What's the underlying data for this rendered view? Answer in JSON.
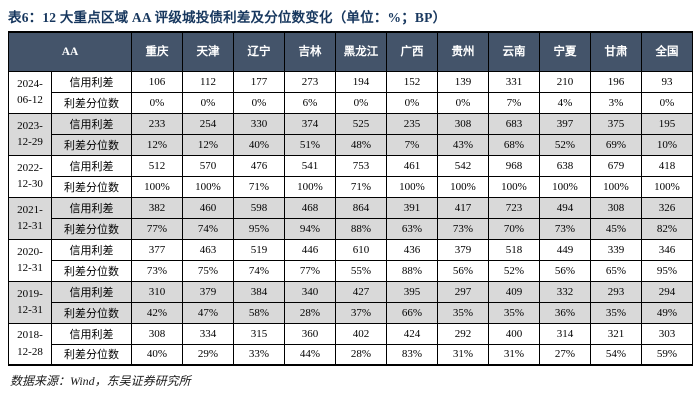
{
  "title": "表6：12 大重点区域 AA 评级城投债利差及分位数变化（单位：%；BP）",
  "table": {
    "corner_label": "AA",
    "columns": [
      "重庆",
      "天津",
      "辽宁",
      "吉林",
      "黑龙江",
      "广西",
      "贵州",
      "云南",
      "宁夏",
      "甘肃",
      "全国"
    ],
    "metric_labels": [
      "信用利差",
      "利差分位数"
    ],
    "rows": [
      {
        "date": [
          "2024-",
          "06-12"
        ],
        "spread": [
          "106",
          "112",
          "177",
          "273",
          "194",
          "152",
          "139",
          "331",
          "210",
          "196",
          "93"
        ],
        "percentile": [
          "0%",
          "0%",
          "0%",
          "6%",
          "0%",
          "0%",
          "0%",
          "7%",
          "4%",
          "3%",
          "0%"
        ]
      },
      {
        "date": [
          "2023-",
          "12-29"
        ],
        "spread": [
          "233",
          "254",
          "330",
          "374",
          "525",
          "235",
          "308",
          "683",
          "397",
          "375",
          "195"
        ],
        "percentile": [
          "12%",
          "12%",
          "40%",
          "51%",
          "48%",
          "7%",
          "43%",
          "68%",
          "52%",
          "69%",
          "10%"
        ]
      },
      {
        "date": [
          "2022-",
          "12-30"
        ],
        "spread": [
          "512",
          "570",
          "476",
          "541",
          "753",
          "461",
          "542",
          "968",
          "638",
          "679",
          "418"
        ],
        "percentile": [
          "100%",
          "100%",
          "71%",
          "100%",
          "71%",
          "100%",
          "100%",
          "100%",
          "100%",
          "100%",
          "100%"
        ]
      },
      {
        "date": [
          "2021-",
          "12-31"
        ],
        "spread": [
          "382",
          "460",
          "598",
          "468",
          "864",
          "391",
          "417",
          "723",
          "494",
          "308",
          "326"
        ],
        "percentile": [
          "77%",
          "74%",
          "95%",
          "94%",
          "88%",
          "63%",
          "73%",
          "70%",
          "73%",
          "45%",
          "82%"
        ]
      },
      {
        "date": [
          "2020-",
          "12-31"
        ],
        "spread": [
          "377",
          "463",
          "519",
          "446",
          "610",
          "436",
          "379",
          "518",
          "449",
          "339",
          "346"
        ],
        "percentile": [
          "73%",
          "75%",
          "74%",
          "77%",
          "55%",
          "88%",
          "56%",
          "52%",
          "56%",
          "65%",
          "95%"
        ]
      },
      {
        "date": [
          "2019-",
          "12-31"
        ],
        "spread": [
          "310",
          "379",
          "384",
          "340",
          "427",
          "395",
          "297",
          "409",
          "332",
          "293",
          "294"
        ],
        "percentile": [
          "42%",
          "47%",
          "58%",
          "28%",
          "37%",
          "66%",
          "35%",
          "35%",
          "36%",
          "35%",
          "49%"
        ]
      },
      {
        "date": [
          "2018-",
          "12-28"
        ],
        "spread": [
          "308",
          "334",
          "315",
          "360",
          "402",
          "424",
          "292",
          "400",
          "314",
          "321",
          "303"
        ],
        "percentile": [
          "40%",
          "29%",
          "33%",
          "44%",
          "28%",
          "83%",
          "31%",
          "31%",
          "27%",
          "54%",
          "59%"
        ]
      }
    ]
  },
  "footer": {
    "source": "数据来源：Wind，东吴证券研究所"
  },
  "colors": {
    "header_bg": "#44546A",
    "header_text": "#FFFFFF",
    "alt_row_bg": "#D9D9D9",
    "title_color": "#17375E",
    "border": "#000000"
  }
}
